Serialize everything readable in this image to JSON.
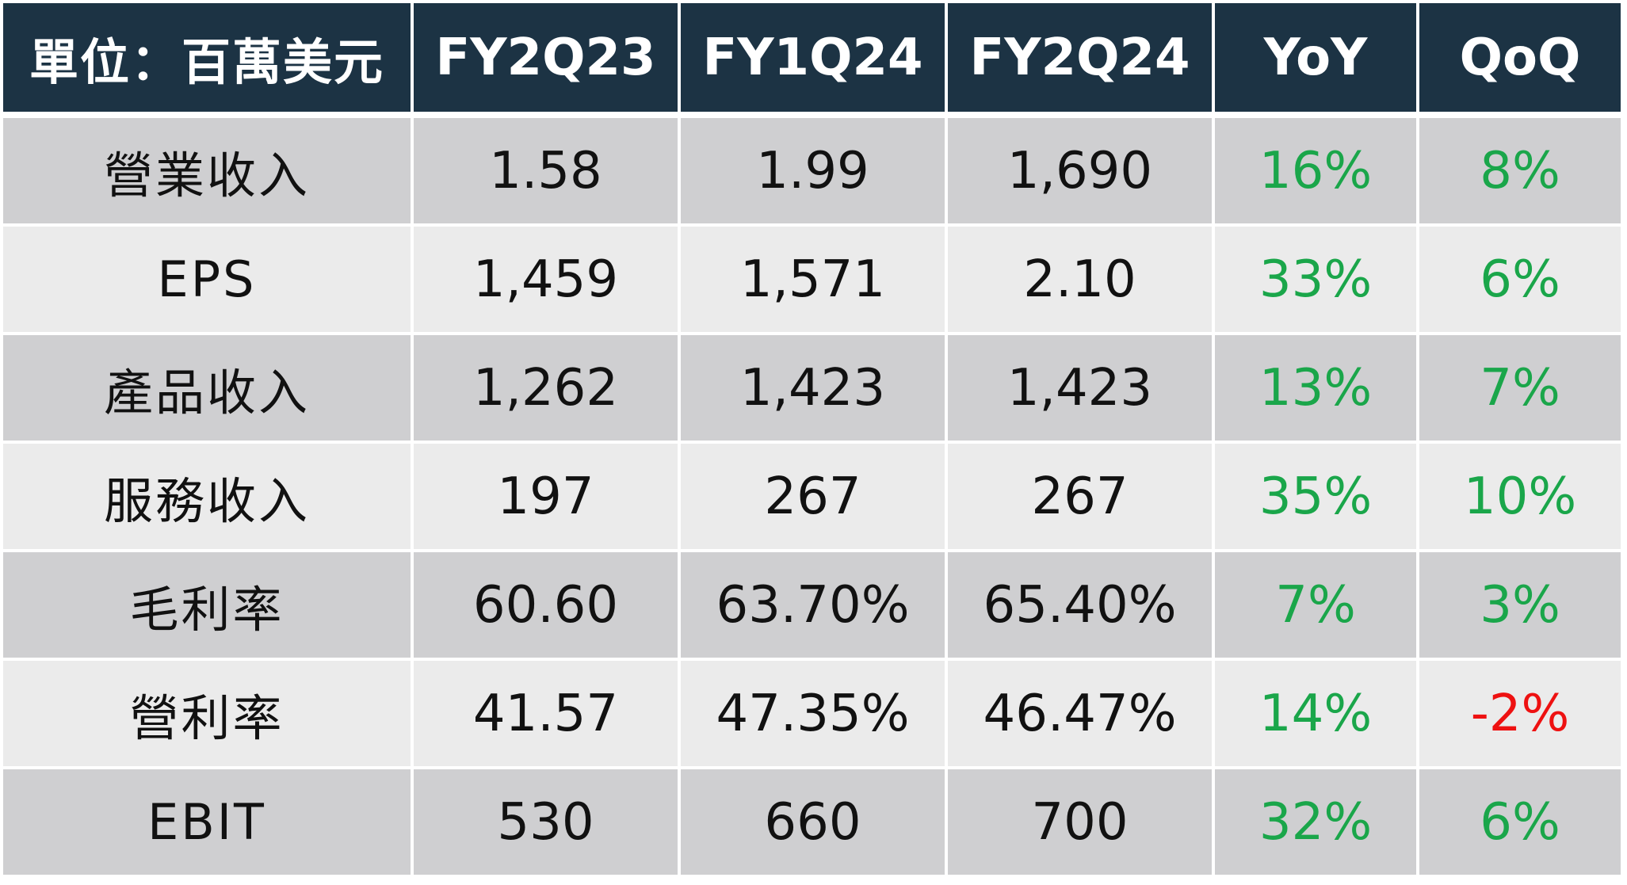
{
  "chart_data": {
    "type": "table",
    "columns": [
      "單位：百萬美元",
      "FY2Q23",
      "FY1Q24",
      "FY2Q24",
      "YoY",
      "QoQ"
    ],
    "rows": [
      {
        "label": "營業收入",
        "values": [
          "1.58",
          "1.99",
          "1,690",
          "16%",
          "8%"
        ]
      },
      {
        "label": "EPS",
        "values": [
          "1,459",
          "1,571",
          "2.10",
          "33%",
          "6%"
        ]
      },
      {
        "label": "產品收入",
        "values": [
          "1,262",
          "1,423",
          "1,423",
          "13%",
          "7%"
        ]
      },
      {
        "label": "服務收入",
        "values": [
          "197",
          "267",
          "267",
          "35%",
          "10%"
        ]
      },
      {
        "label": "毛利率",
        "values": [
          "60.60",
          "63.70%",
          "65.40%",
          "7%",
          "3%"
        ]
      },
      {
        "label": "營利率",
        "values": [
          "41.57",
          "47.35%",
          "46.47%",
          "14%",
          "-2%"
        ]
      },
      {
        "label": "EBIT",
        "values": [
          "530",
          "660",
          "700",
          "32%",
          "6%"
        ]
      }
    ]
  },
  "colors": {
    "header_bg": "#1c3344",
    "header_text": "#ffffff",
    "row_dark": "#cfcfd1",
    "row_light": "#ebebeb",
    "positive": "#1aa64a",
    "negative": "#ee1111"
  }
}
